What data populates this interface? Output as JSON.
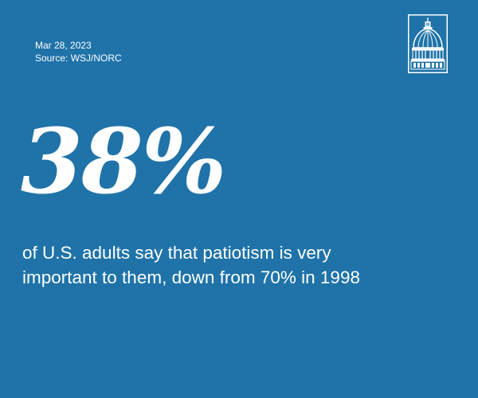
{
  "meta": {
    "date": "Mar 28, 2023",
    "source": "Source: WSJ/NORC"
  },
  "logo": {
    "icon": "capitol-dome-icon"
  },
  "stat": {
    "value": "38%",
    "caption_line1": "of U.S. adults say that patiotism is very",
    "caption_line2": "important to them, down from 70% in 1998"
  },
  "colors": {
    "background": "#1f73a8",
    "foreground": "#ffffff"
  }
}
